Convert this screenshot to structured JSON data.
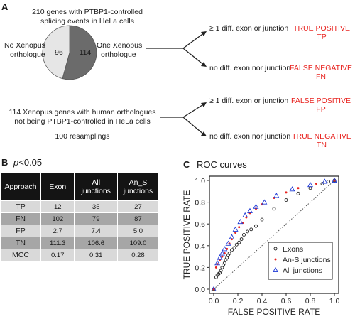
{
  "panelA": {
    "label": "A",
    "heading_lines": [
      "210 genes with PTBP1-controlled",
      "splicing events in HeLa cells"
    ],
    "pie": {
      "slices": [
        {
          "value": 96,
          "color": "#e6e6e6"
        },
        {
          "value": 114,
          "color": "#6b6b6b"
        }
      ],
      "left_value": "96",
      "right_value": "114"
    },
    "left_label_lines": [
      "No Xenopus",
      "orthologue"
    ],
    "right_label_lines": [
      "One Xenopus",
      "orthologue"
    ],
    "branch_top": "≥ 1 diff. exon or junction",
    "branch_bottom": "no diff. exon nor junction",
    "result_tp_lines": [
      "TRUE POSITIVE",
      "TP"
    ],
    "result_fn_lines": [
      "FALSE NEGATIVE",
      "FN"
    ],
    "second_heading_lines": [
      "114 Xenopus genes with human orthologues",
      "not being PTBP1-controlled in HeLa cells"
    ],
    "resamplings": "100 resamplings",
    "branch_top2": "≥ 1 diff. exon or junction",
    "branch_bottom2": "no diff. exon nor junction",
    "result_fp_lines": [
      "FALSE POSITIVE",
      "FP"
    ],
    "result_tn_lines": [
      "TRUE NEGATIVE",
      "TN"
    ],
    "accent_red": "#e8231f"
  },
  "panelB": {
    "label": "B",
    "p_label": "p",
    "p_value": "<0.05",
    "headers": [
      "Approach",
      "Exon",
      "All junctions",
      "An_S junctions"
    ],
    "rows": [
      [
        "TP",
        "12",
        "35",
        "27"
      ],
      [
        "FN",
        "102",
        "79",
        "87"
      ],
      [
        "FP",
        "2.7",
        "7.4",
        "5.0"
      ],
      [
        "TN",
        "111.3",
        "106.6",
        "109.0"
      ],
      [
        "MCC",
        "0.17",
        "0.31",
        "0.28"
      ]
    ]
  },
  "panelC": {
    "label": "C",
    "title": "ROC curves",
    "chart_data": {
      "type": "scatter",
      "xlabel": "FALSE POSITIVE RATE",
      "ylabel": "TRUE POSITIVE RATE",
      "xlim": [
        0,
        1
      ],
      "ylim": [
        0,
        1
      ],
      "xticks": [
        "0.0",
        "0.2",
        "0.4",
        "0.6",
        "0.8",
        "1.0"
      ],
      "yticks": [
        "0.0",
        "0.2",
        "0.4",
        "0.6",
        "0.8",
        "1.0"
      ],
      "legend_position": "bottom-right",
      "diagonal": true,
      "series": [
        {
          "name": "Exons",
          "marker": "circle",
          "color": "#222222",
          "x": [
            0,
            0.02,
            0.03,
            0.04,
            0.05,
            0.06,
            0.07,
            0.08,
            0.09,
            0.1,
            0.11,
            0.12,
            0.13,
            0.15,
            0.17,
            0.19,
            0.21,
            0.23,
            0.25,
            0.28,
            0.31,
            0.35,
            0.4,
            0.5,
            0.6,
            0.7,
            0.8,
            0.9,
            0.95,
            1.0
          ],
          "y": [
            0,
            0.11,
            0.13,
            0.14,
            0.15,
            0.17,
            0.2,
            0.22,
            0.24,
            0.27,
            0.29,
            0.31,
            0.33,
            0.36,
            0.38,
            0.41,
            0.43,
            0.46,
            0.5,
            0.53,
            0.55,
            0.58,
            0.64,
            0.74,
            0.82,
            0.88,
            0.93,
            0.97,
            0.99,
            1.0
          ]
        },
        {
          "name": "An-S junctions",
          "marker": "dot",
          "color": "#e8231f",
          "x": [
            0,
            0.02,
            0.03,
            0.05,
            0.07,
            0.09,
            0.11,
            0.13,
            0.15,
            0.18,
            0.21,
            0.24,
            0.27,
            0.3,
            0.35,
            0.4,
            0.5,
            0.6,
            0.7,
            0.85,
            1.0
          ],
          "y": [
            0,
            0.2,
            0.23,
            0.27,
            0.3,
            0.33,
            0.37,
            0.42,
            0.46,
            0.52,
            0.57,
            0.61,
            0.66,
            0.7,
            0.74,
            0.78,
            0.84,
            0.89,
            0.93,
            0.97,
            1.0
          ]
        },
        {
          "name": "All junctions",
          "marker": "triangle",
          "color": "#1f3ad6",
          "x": [
            0,
            0.03,
            0.05,
            0.07,
            0.09,
            0.12,
            0.15,
            0.18,
            0.22,
            0.26,
            0.3,
            0.35,
            0.42,
            0.52,
            0.65,
            0.8,
            0.92,
            1.0
          ],
          "y": [
            0,
            0.24,
            0.29,
            0.33,
            0.37,
            0.42,
            0.48,
            0.55,
            0.62,
            0.68,
            0.72,
            0.76,
            0.8,
            0.86,
            0.92,
            0.96,
            0.99,
            1.0
          ]
        }
      ]
    }
  }
}
